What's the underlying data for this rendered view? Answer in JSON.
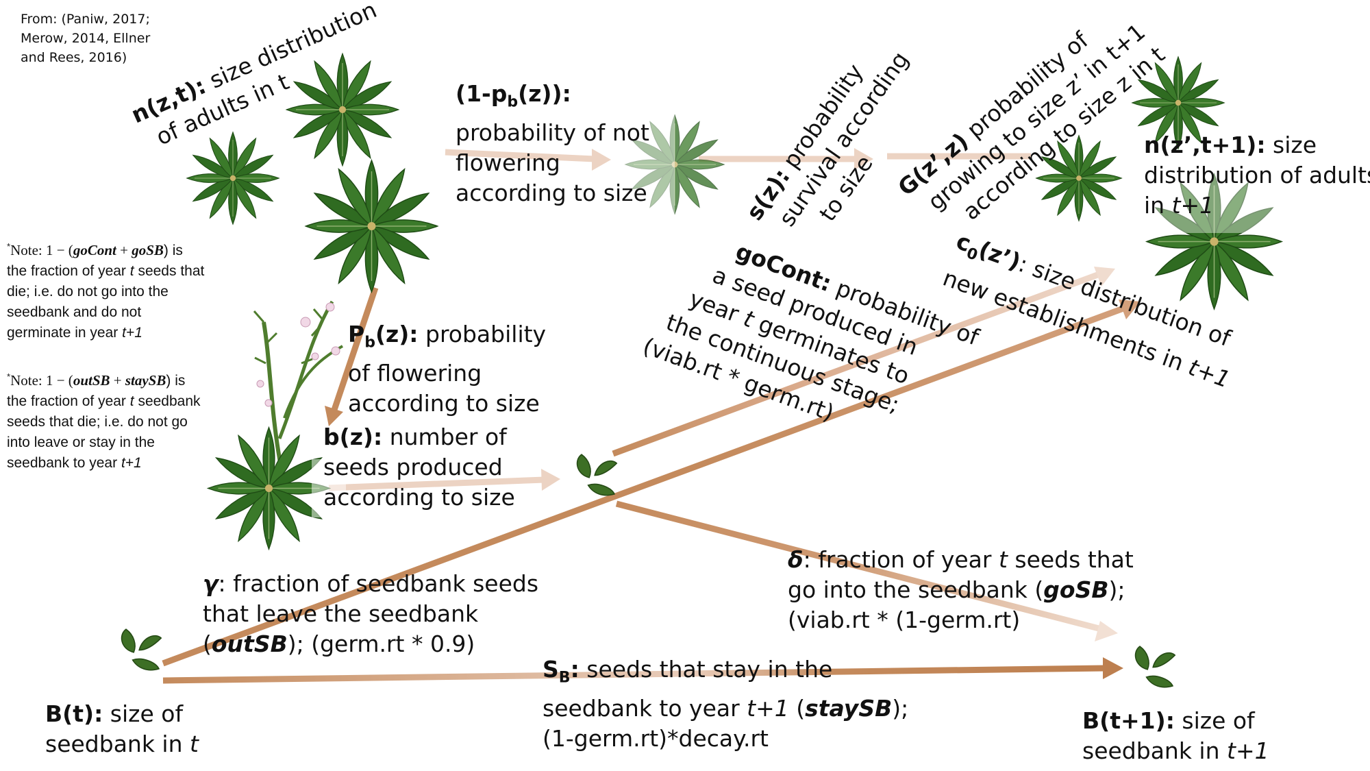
{
  "source_note": [
    "From: (Paniw, 2017;",
    "Merow, 2014, Ellner",
    "and Rees, 2016)"
  ],
  "notes": {
    "note1": {
      "star": "*",
      "pre": "Note: 1 − (",
      "a": "goCont",
      "plus": " + ",
      "b": "goSB",
      "post": ") is the fraction of year ",
      "t": "t",
      "mid": " seeds that die; i.e. do not go into the seedbank and do not germinate in year ",
      "t1": "t+1"
    },
    "note2": {
      "star": "*",
      "pre": "Note: 1 − (",
      "a": "outSB",
      "plus": " + ",
      "b": "staySB",
      "post": ") is the fraction of year ",
      "t": "t",
      "mid": " seedbank seeds that die; i.e. do not go into leave or stay in the seedbank to year ",
      "t1": "t+1"
    }
  },
  "labels": {
    "nzt": {
      "sym": "n(z,t):",
      "l1": " size distribution",
      "l2": "of adults in t"
    },
    "one_minus_pb": {
      "sym_a": "(1-p",
      "sym_sub": "b",
      "sym_b": "(z)):",
      "l1": "probability of not",
      "l2": "flowering",
      "l3": "according to size"
    },
    "sz": {
      "sym": "s(z):",
      "l1": " probability",
      "l2": "survival according",
      "l3": "to size"
    },
    "gzz": {
      "sym": "G(z’,z)",
      "l1": " probability  of",
      "l2": "growing to size z’ in t+1",
      "l3": "according to size z in t"
    },
    "nzt1": {
      "sym": "n(z’,t+1):",
      "l1": " size",
      "l2": "distribution of adults",
      "l3a": "in ",
      "l3b": "t+1"
    },
    "c0": {
      "sym_a": "c",
      "sym_sub": "0",
      "sym_b": "(z’)",
      "l1": ": size distribution of",
      "l2": "new establishments in ",
      "l2b": "t+1"
    },
    "gocont": {
      "sym": "goCont:",
      "l1": " probability of",
      "l2": "a seed produced in",
      "l3a": "year ",
      "l3b": "t",
      "l3c": " germinates to",
      "l4": "the continuous stage;",
      "l5": "(viab.rt * germ.rt)"
    },
    "pb": {
      "sym_a": "P",
      "sym_sub": "b",
      "sym_b": "(z):",
      "l1": " probability",
      "l2": "of flowering",
      "l3": "according to size"
    },
    "bz": {
      "sym": "b(z):",
      "l1": " number of",
      "l2": "seeds produced",
      "l3": "according to size"
    },
    "delta": {
      "sym": "δ",
      "l1a": ": fraction of year ",
      "l1b": "t",
      "l1c": " seeds that",
      "l2a": "go into the seedbank (",
      "l2b": "goSB",
      "l2c": ");",
      "l3": "(viab.rt * (1-germ.rt)"
    },
    "gamma": {
      "sym": "γ",
      "l1": ": fraction of seedbank seeds",
      "l2": "that leave the seedbank",
      "l3a": "(",
      "l3b": "outSB",
      "l3c": "); (germ.rt * 0.9)"
    },
    "sb": {
      "sym_a": "S",
      "sym_sub": "B",
      "sym_b": ":",
      "l1": " seeds that stay in the",
      "l2a": "seedbank to year ",
      "l2b": "t+1",
      "l2c": " (",
      "l2d": "staySB",
      "l2e": ");",
      "l3": "(1-germ.rt)*decay.rt"
    },
    "bt": {
      "sym": "B(t):",
      "l1": " size of",
      "l2a": "seedbank in ",
      "l2b": "t"
    },
    "bt1": {
      "sym": "B(t+1):",
      "l1": " size of",
      "l2a": "seedbank in ",
      "l2b": "t+1"
    }
  },
  "colors": {
    "arrow_dark": "#c48a5c",
    "arrow_light": "#ecd3c3",
    "leaf_dark": "#2f6b21",
    "leaf_mid": "#4f8a34",
    "leaf_light": "#a9c79a",
    "seed": "#3d6f25",
    "flower": "#f1d8e6"
  }
}
